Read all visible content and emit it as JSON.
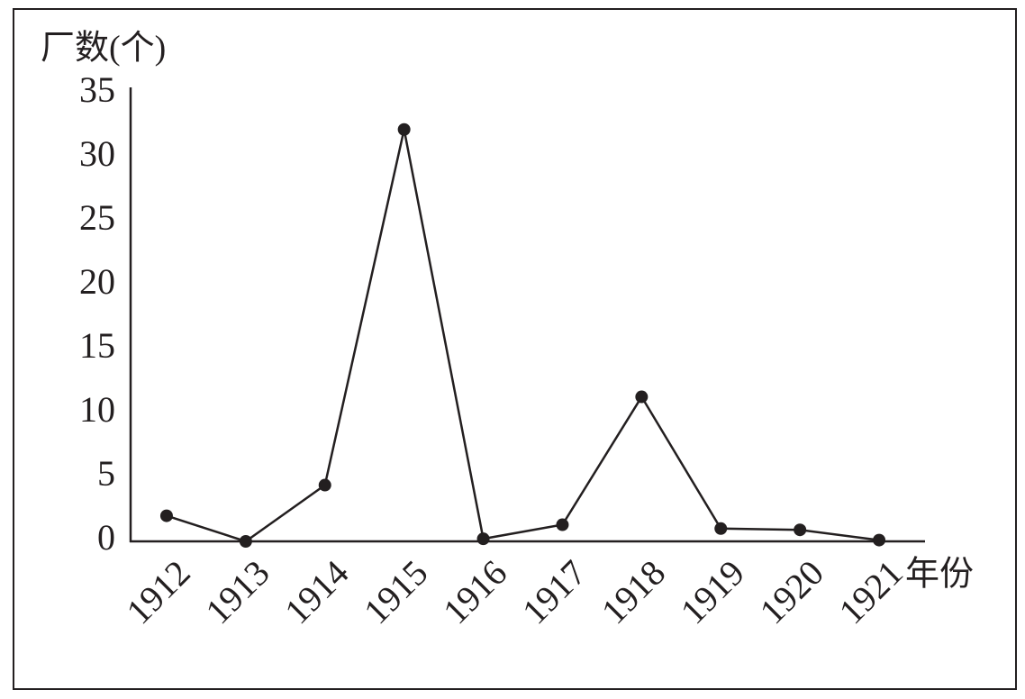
{
  "chart_data": {
    "type": "line",
    "y_label": "厂数(个)",
    "x_label": "年份",
    "categories": [
      "1912",
      "1913",
      "1914",
      "1915",
      "1916",
      "1917",
      "1918",
      "1919",
      "1920",
      "1921"
    ],
    "series": [
      {
        "name": "厂数",
        "color": "#231f20",
        "values": [
          2,
          0,
          4.4,
          32.2,
          0.2,
          1.3,
          11.3,
          1,
          0.9,
          0.1
        ]
      }
    ],
    "ylim": [
      0,
      35
    ],
    "yticks": [
      0,
      5,
      10,
      15,
      20,
      25,
      30,
      35
    ]
  }
}
